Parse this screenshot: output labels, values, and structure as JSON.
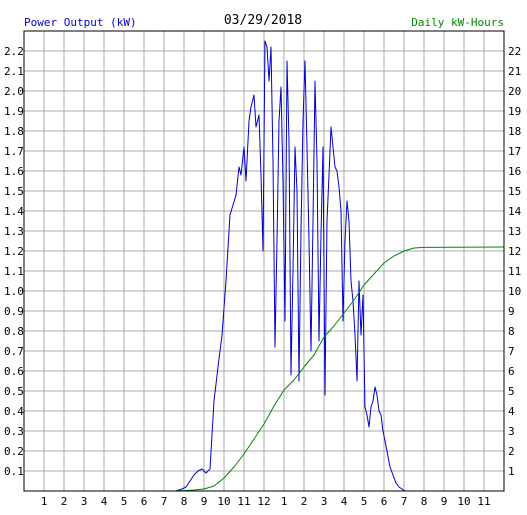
{
  "colors": {
    "power": "#0000cc",
    "energy": "#008800",
    "grid": "#aaaaaa",
    "axis": "#000000",
    "left_label": "#0000cc",
    "right_label": "#008800",
    "background": "#ffffff"
  },
  "chart_data": {
    "type": "line",
    "title": "03/29/2018",
    "ylabel_left": "Power Output (kW)",
    "ylabel_right": "Daily kW-Hours",
    "x_tick_labels": [
      "1",
      "2",
      "3",
      "4",
      "5",
      "6",
      "7",
      "8",
      "9",
      "10",
      "11",
      "12",
      "1",
      "2",
      "3",
      "4",
      "5",
      "6",
      "7",
      "8",
      "9",
      "10",
      "11"
    ],
    "y_left_ticks": [
      "0.1",
      "0.2",
      "0.3",
      "0.4",
      "0.5",
      "0.6",
      "0.7",
      "0.8",
      "0.9",
      "1.0",
      "1.1",
      "1.2",
      "1.3",
      "1.4",
      "1.5",
      "1.6",
      "1.7",
      "1.8",
      "1.9",
      "2.0",
      "2.1",
      "2.2"
    ],
    "y_right_ticks": [
      "1",
      "2",
      "3",
      "4",
      "5",
      "6",
      "7",
      "8",
      "9",
      "10",
      "11",
      "12",
      "13",
      "14",
      "15",
      "16",
      "17",
      "18",
      "19",
      "20",
      "21",
      "22"
    ],
    "xlim": [
      0,
      24
    ],
    "ylim_left": [
      0,
      2.3
    ],
    "ylim_right": [
      0,
      23
    ],
    "grid": true,
    "series": [
      {
        "axis": "left",
        "x": [
          6.5,
          7.0,
          7.3,
          7.6,
          7.9,
          8.1,
          8.3,
          8.5,
          8.7,
          8.9,
          9.1,
          9.2,
          9.3,
          9.5,
          9.7,
          9.9,
          10.1,
          10.3,
          10.45,
          10.6,
          10.75,
          10.85,
          11.0,
          11.1,
          11.25,
          11.35,
          11.5,
          11.6,
          11.75,
          11.85,
          11.95,
          12.05,
          12.15,
          12.25,
          12.35,
          12.45,
          12.55,
          12.65,
          12.75,
          12.85,
          12.95,
          13.05,
          13.15,
          13.25,
          13.35,
          13.45,
          13.55,
          13.65,
          13.75,
          13.85,
          13.95,
          14.05,
          14.15,
          14.25,
          14.35,
          14.45,
          14.55,
          14.65,
          14.75,
          14.85,
          14.95,
          15.05,
          15.15,
          15.25,
          15.35,
          15.45,
          15.55,
          15.65,
          15.75,
          15.85,
          15.95,
          16.05,
          16.15,
          16.25,
          16.35,
          16.45,
          16.55,
          16.65,
          16.75,
          16.85,
          16.95,
          17.05,
          17.15,
          17.25,
          17.35,
          17.45,
          17.55,
          17.65,
          17.75,
          17.85,
          17.95,
          18.05,
          18.15,
          18.3,
          18.45,
          18.6,
          18.75,
          18.9,
          19.05,
          19.2,
          19.35,
          19.5,
          19.65,
          19.8,
          20.0,
          20.5,
          21.0,
          24.0
        ],
        "y": [
          0.0,
          0.0,
          0.0,
          0.0,
          0.01,
          0.02,
          0.05,
          0.08,
          0.1,
          0.11,
          0.09,
          0.1,
          0.11,
          0.45,
          0.62,
          0.78,
          1.05,
          1.38,
          1.43,
          1.48,
          1.62,
          1.58,
          1.72,
          1.55,
          1.85,
          1.92,
          1.98,
          1.82,
          1.88,
          1.58,
          1.2,
          2.25,
          2.22,
          2.05,
          2.22,
          1.65,
          0.72,
          1.25,
          1.85,
          2.02,
          1.55,
          0.85,
          2.15,
          1.75,
          0.58,
          1.1,
          1.72,
          1.5,
          0.55,
          1.3,
          1.85,
          2.15,
          1.72,
          1.25,
          0.7,
          1.35,
          2.05,
          1.65,
          0.75,
          1.28,
          1.72,
          0.48,
          1.35,
          1.58,
          1.82,
          1.72,
          1.62,
          1.6,
          1.52,
          1.4,
          0.85,
          1.25,
          1.45,
          1.35,
          1.05,
          0.95,
          0.78,
          0.55,
          1.05,
          0.78,
          0.98,
          0.42,
          0.38,
          0.32,
          0.42,
          0.45,
          0.52,
          0.48,
          0.4,
          0.38,
          0.3,
          0.25,
          0.2,
          0.12,
          0.08,
          0.04,
          0.02,
          0.01,
          0.0,
          0.0,
          0.0,
          0.0,
          0.0,
          0.0,
          0.0,
          0.0,
          0.0,
          0.0
        ]
      },
      {
        "axis": "right",
        "x": [
          6.5,
          7.5,
          8.0,
          8.5,
          9.0,
          9.5,
          10.0,
          10.5,
          11.0,
          11.5,
          12.0,
          12.5,
          13.0,
          13.5,
          14.0,
          14.5,
          15.0,
          15.5,
          16.0,
          16.5,
          17.0,
          17.5,
          18.0,
          18.5,
          19.0,
          19.5,
          20.0,
          24.0
        ],
        "y": [
          0.0,
          0.0,
          0.02,
          0.05,
          0.1,
          0.25,
          0.65,
          1.2,
          1.85,
          2.6,
          3.35,
          4.25,
          5.05,
          5.55,
          6.2,
          6.8,
          7.7,
          8.25,
          8.9,
          9.55,
          10.3,
          10.85,
          11.4,
          11.75,
          12.0,
          12.15,
          12.18,
          12.2
        ]
      }
    ]
  }
}
